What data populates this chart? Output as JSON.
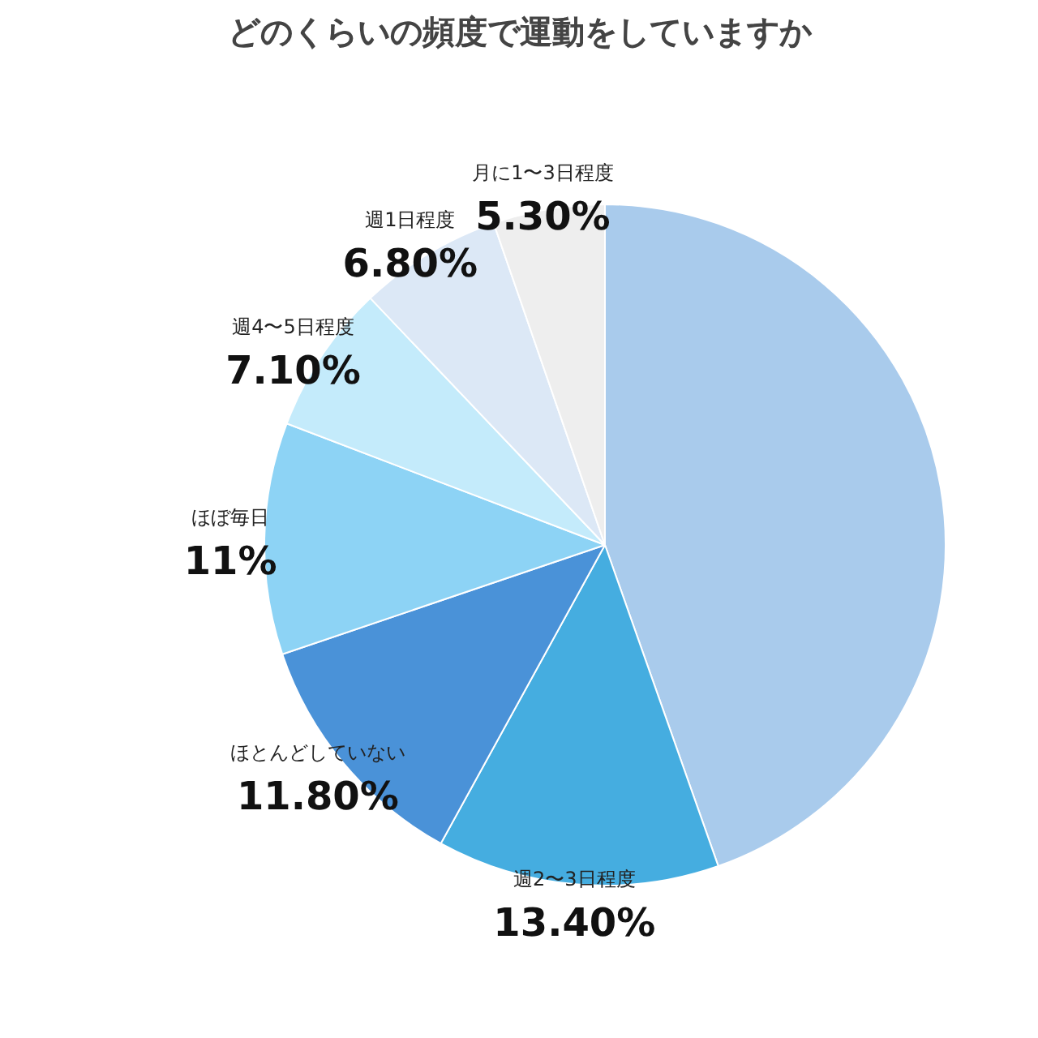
{
  "chart_data": {
    "type": "pie",
    "title": "どのくらいの頻度で運動をしていますか",
    "categories": [
      null,
      "週2〜3日程度",
      "ほとんどしていない",
      "ほぼ毎日",
      "週4〜5日程度",
      "週1日程度",
      "月に1〜3日程度"
    ],
    "values": [
      44.6,
      13.4,
      11.8,
      11,
      7.1,
      6.8,
      5.3
    ],
    "value_labels": [
      null,
      "13.40%",
      "11.80%",
      "11%",
      "7.10%",
      "6.80%",
      "5.30%"
    ],
    "colors": [
      "#a9cbec",
      "#45ade0",
      "#4a92d8",
      "#8dd3f5",
      "#c4ebfb",
      "#dce8f6",
      "#eeeeee"
    ]
  }
}
